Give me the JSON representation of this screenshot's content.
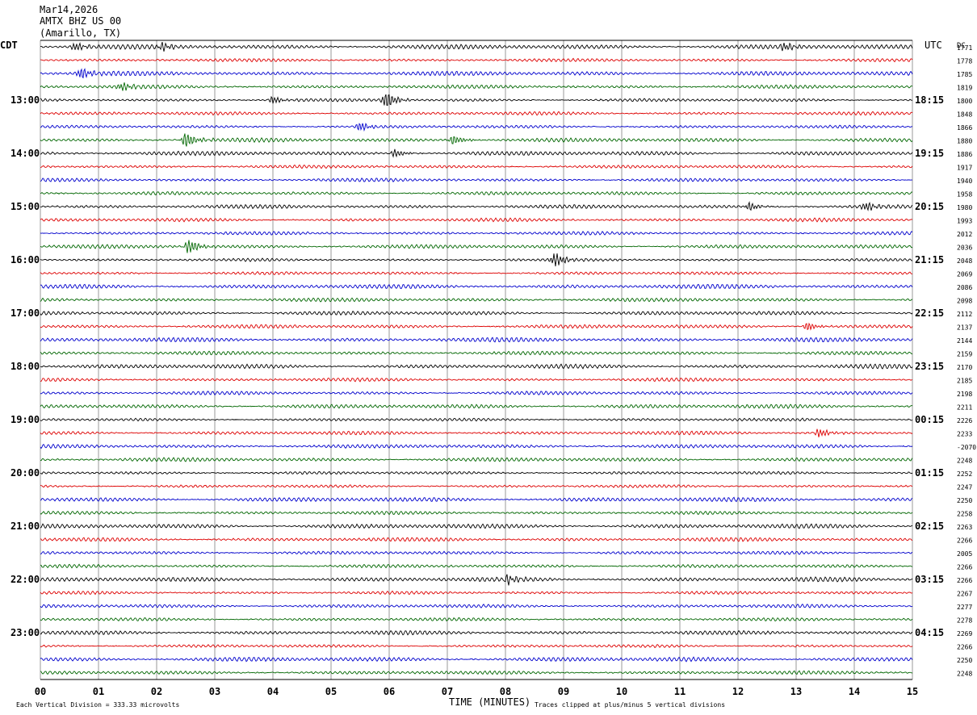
{
  "header": {
    "date": "Mar14,2026",
    "station": "AMTX BHZ US 00",
    "location": "(Amarillo, TX)"
  },
  "left_zone_label": "CDT",
  "right_zone_label": "UTC",
  "dc_label": "DC",
  "footer": {
    "scale_note": "Each Vertical Division =  333.33 microvolts",
    "clip_note": "Traces clipped at plus/minus 5 vertical divisions"
  },
  "colors": {
    "trace_cycle": [
      "#000000",
      "#dd0000",
      "#0000cc",
      "#006600"
    ],
    "grid": "#000000",
    "background": "#ffffff"
  },
  "chart_data": {
    "type": "line",
    "subtype": "helicorder",
    "xlabel": "TIME (MINUTES)",
    "xlim": [
      0,
      15
    ],
    "x_ticks": [
      "00",
      "01",
      "02",
      "03",
      "04",
      "05",
      "06",
      "07",
      "08",
      "09",
      "10",
      "11",
      "12",
      "13",
      "14",
      "15"
    ],
    "row_minutes": 15,
    "row_count": 48,
    "left_hour_labels": [
      "13:00",
      "14:00",
      "15:00",
      "16:00",
      "17:00",
      "18:00",
      "19:00",
      "20:00",
      "21:00",
      "22:00",
      "23:00"
    ],
    "right_hour_labels": [
      "18:15",
      "19:15",
      "20:15",
      "21:15",
      "22:15",
      "23:15",
      "00:15",
      "01:15",
      "02:15",
      "03:15",
      "04:15"
    ],
    "dc_values": [
      "1771",
      "1778",
      "1785",
      "1819",
      "1800",
      "1848",
      "1866",
      "1880",
      "1886",
      "1917",
      "1940",
      "1958",
      "1980",
      "1993",
      "2012",
      "2036",
      "2048",
      "2069",
      "2086",
      "2098",
      "2112",
      "2137",
      "2144",
      "2159",
      "2170",
      "2185",
      "2198",
      "2211",
      "2226",
      "2233",
      "-2070",
      "2248",
      "2252",
      "2247",
      "2250",
      "2258",
      "2263",
      "2266",
      "2005",
      "2266",
      "2266",
      "2267",
      "2277",
      "2278",
      "2269",
      "2266",
      "2250",
      "2248"
    ],
    "events": [
      {
        "row": 0,
        "minute": 0.6,
        "amplitude": 1.3
      },
      {
        "row": 0,
        "minute": 2.1,
        "amplitude": 1.2
      },
      {
        "row": 0,
        "minute": 12.8,
        "amplitude": 1.2
      },
      {
        "row": 2,
        "minute": 0.7,
        "amplitude": 1.8
      },
      {
        "row": 3,
        "minute": 1.4,
        "amplitude": 1.3
      },
      {
        "row": 4,
        "minute": 5.95,
        "amplitude": 2.6
      },
      {
        "row": 4,
        "minute": 4.0,
        "amplitude": 1.2
      },
      {
        "row": 6,
        "minute": 5.5,
        "amplitude": 1.4
      },
      {
        "row": 7,
        "minute": 2.5,
        "amplitude": 2.4
      },
      {
        "row": 7,
        "minute": 7.1,
        "amplitude": 1.5
      },
      {
        "row": 8,
        "minute": 6.1,
        "amplitude": 1.2
      },
      {
        "row": 12,
        "minute": 12.2,
        "amplitude": 1.3
      },
      {
        "row": 12,
        "minute": 14.2,
        "amplitude": 1.4
      },
      {
        "row": 15,
        "minute": 2.55,
        "amplitude": 2.3
      },
      {
        "row": 16,
        "minute": 8.85,
        "amplitude": 2.2
      },
      {
        "row": 21,
        "minute": 13.2,
        "amplitude": 1.3
      },
      {
        "row": 29,
        "minute": 13.4,
        "amplitude": 1.3
      },
      {
        "row": 40,
        "minute": 8.05,
        "amplitude": 1.3
      }
    ]
  }
}
